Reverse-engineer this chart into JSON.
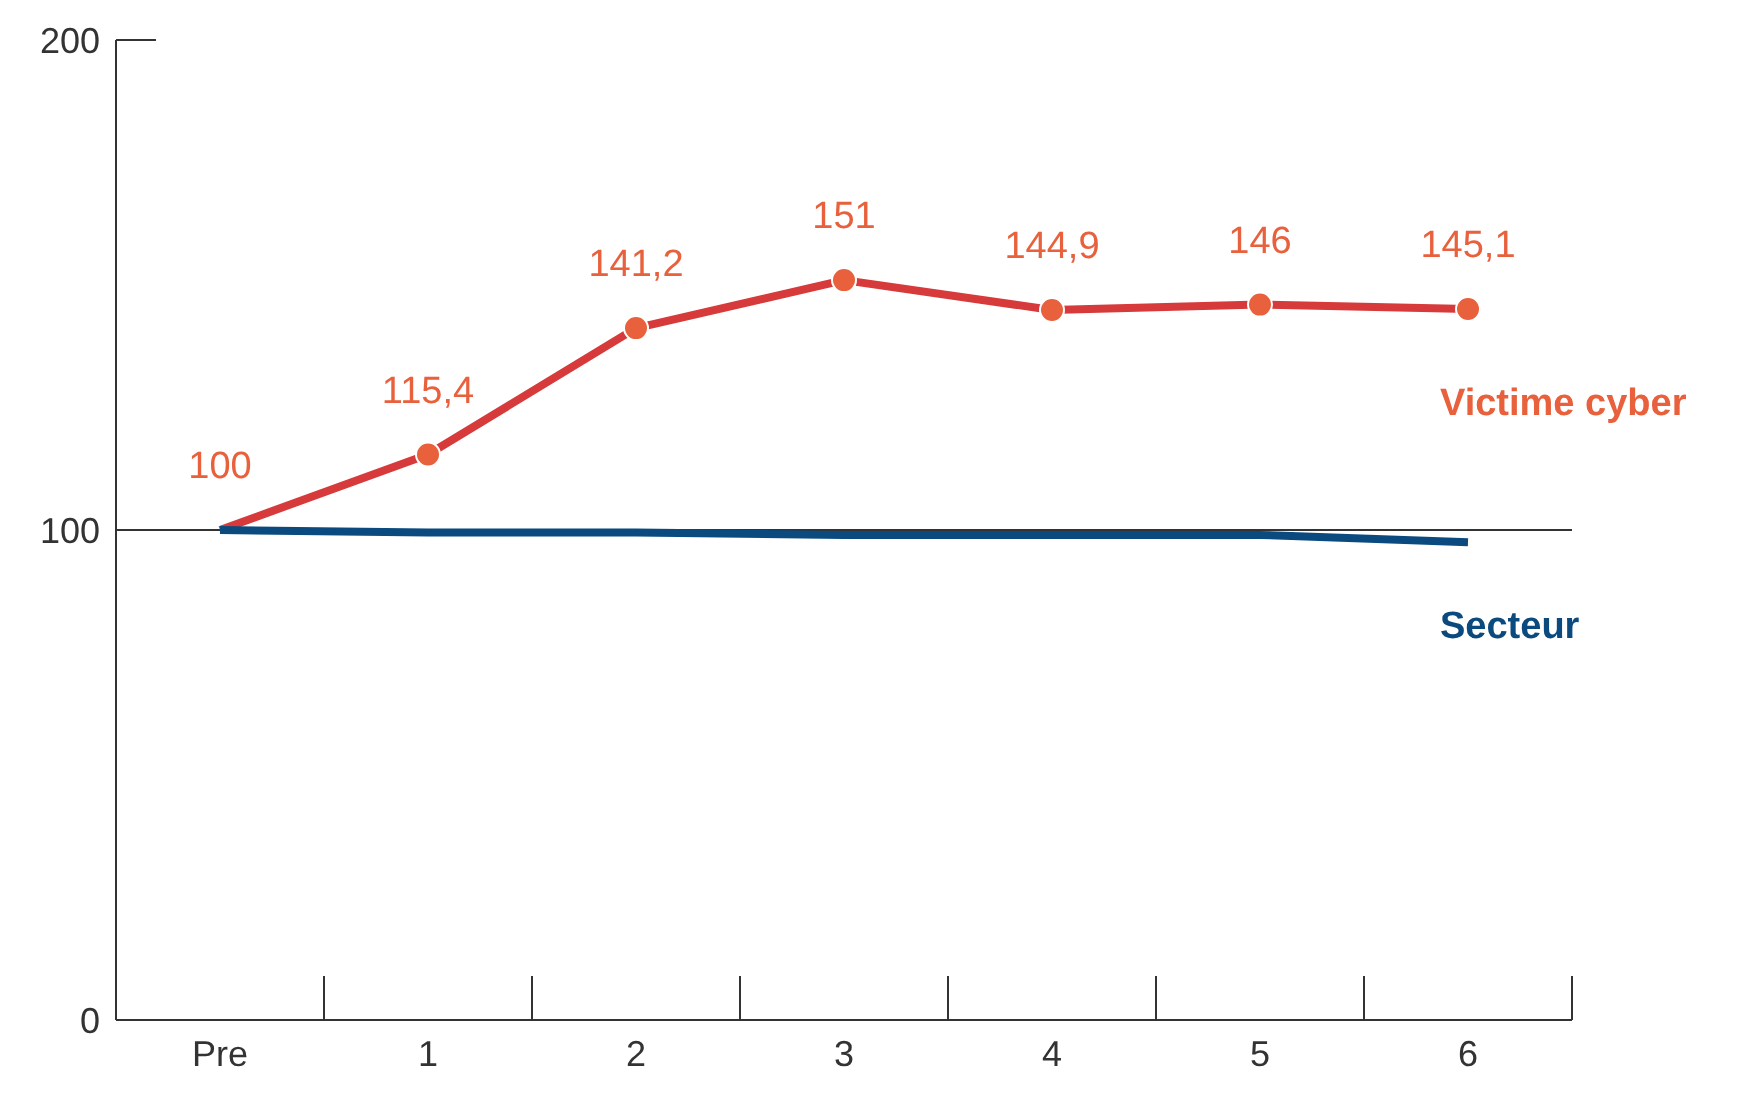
{
  "chart_data": {
    "type": "line",
    "categories": [
      "Pre",
      "1",
      "2",
      "3",
      "4",
      "5",
      "6"
    ],
    "series": [
      {
        "name": "Victime cyber",
        "color": "#d63a3a",
        "values": [
          100,
          115.4,
          141.2,
          151,
          144.9,
          146,
          145.1
        ],
        "value_labels": [
          "100",
          "115,4",
          "141,2",
          "151",
          "144,9",
          "146",
          "145,1"
        ],
        "marker": "circle"
      },
      {
        "name": "Secteur",
        "color": "#0a4a7f",
        "values": [
          100,
          99.5,
          99.5,
          99,
          99,
          99,
          97.5
        ],
        "marker": "none"
      }
    ],
    "ylim": [
      0,
      200
    ],
    "yticks": [
      0,
      100,
      200
    ],
    "ref_lines": [
      {
        "axis": "y",
        "value": 100,
        "color": "#333333"
      }
    ],
    "grid": false,
    "legend": false
  }
}
